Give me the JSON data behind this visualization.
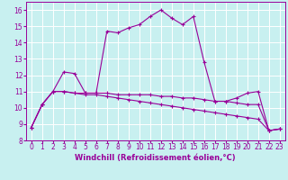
{
  "xlabel": "Windchill (Refroidissement éolien,°C)",
  "bg_color": "#c8f0f0",
  "line_color": "#990099",
  "grid_color": "#ffffff",
  "xlim": [
    -0.5,
    23.5
  ],
  "ylim": [
    8,
    16.5
  ],
  "yticks": [
    8,
    9,
    10,
    11,
    12,
    13,
    14,
    15,
    16
  ],
  "xticks": [
    0,
    1,
    2,
    3,
    4,
    5,
    6,
    7,
    8,
    9,
    10,
    11,
    12,
    13,
    14,
    15,
    16,
    17,
    18,
    19,
    20,
    21,
    22,
    23
  ],
  "line1_x": [
    0,
    1,
    2,
    3,
    4,
    5,
    6,
    7,
    8,
    9,
    10,
    11,
    12,
    13,
    14,
    15,
    16,
    17,
    18,
    19,
    20,
    21,
    22,
    23
  ],
  "line1_y": [
    8.8,
    10.2,
    11.0,
    12.2,
    12.1,
    10.9,
    10.9,
    14.7,
    14.6,
    14.9,
    15.1,
    15.6,
    16.0,
    15.5,
    15.1,
    15.6,
    12.8,
    10.4,
    10.4,
    10.6,
    10.9,
    11.0,
    8.6,
    8.7
  ],
  "line2_x": [
    0,
    1,
    2,
    3,
    4,
    5,
    6,
    7,
    8,
    9,
    10,
    11,
    12,
    13,
    14,
    15,
    16,
    17,
    18,
    19,
    20,
    21,
    22,
    23
  ],
  "line2_y": [
    8.8,
    10.2,
    11.0,
    11.0,
    10.9,
    10.9,
    10.9,
    10.9,
    10.8,
    10.8,
    10.8,
    10.8,
    10.7,
    10.7,
    10.6,
    10.6,
    10.5,
    10.4,
    10.4,
    10.3,
    10.2,
    10.2,
    8.6,
    8.7
  ],
  "line3_x": [
    0,
    1,
    2,
    3,
    4,
    5,
    6,
    7,
    8,
    9,
    10,
    11,
    12,
    13,
    14,
    15,
    16,
    17,
    18,
    19,
    20,
    21,
    22,
    23
  ],
  "line3_y": [
    8.8,
    10.2,
    11.0,
    11.0,
    10.9,
    10.8,
    10.8,
    10.7,
    10.6,
    10.5,
    10.4,
    10.3,
    10.2,
    10.1,
    10.0,
    9.9,
    9.8,
    9.7,
    9.6,
    9.5,
    9.4,
    9.3,
    8.6,
    8.7
  ],
  "marker": "+",
  "markersize": 3,
  "linewidth": 0.8,
  "tick_fontsize": 5.5,
  "label_fontsize": 6.0
}
